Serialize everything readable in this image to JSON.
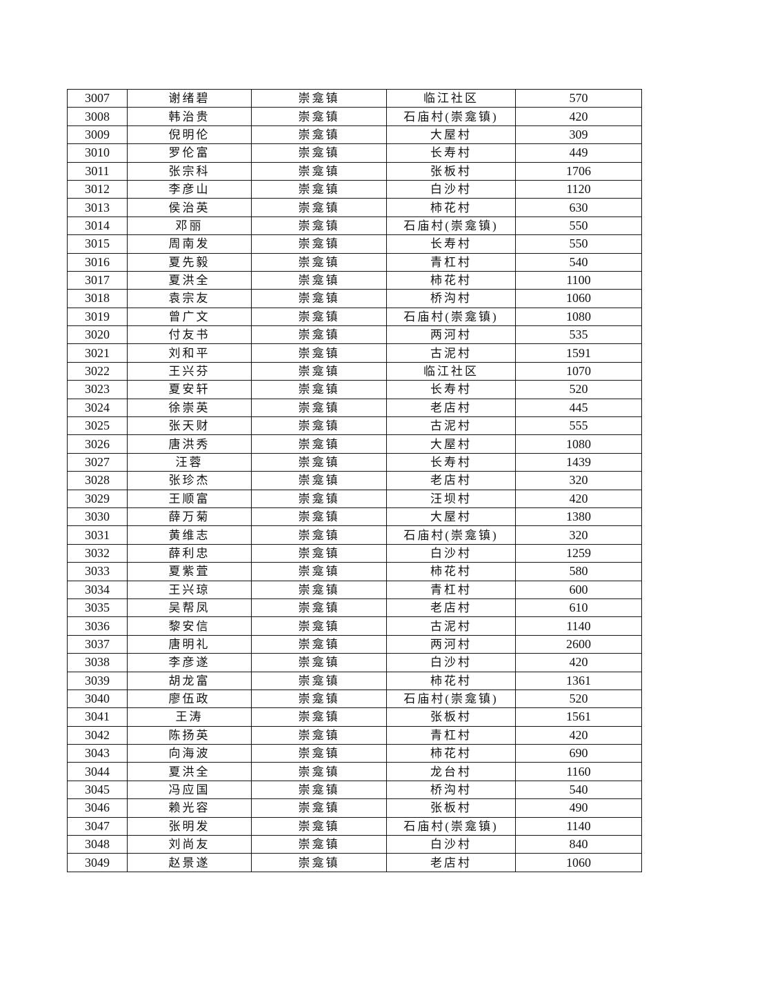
{
  "table": {
    "rows": [
      [
        "3007",
        "谢绪碧",
        "崇龛镇",
        "临江社区",
        "570"
      ],
      [
        "3008",
        "韩治贵",
        "崇龛镇",
        "石庙村(崇龛镇)",
        "420"
      ],
      [
        "3009",
        "倪明伦",
        "崇龛镇",
        "大屋村",
        "309"
      ],
      [
        "3010",
        "罗伦富",
        "崇龛镇",
        "长寿村",
        "449"
      ],
      [
        "3011",
        "张宗科",
        "崇龛镇",
        "张板村",
        "1706"
      ],
      [
        "3012",
        "李彦山",
        "崇龛镇",
        "白沙村",
        "1120"
      ],
      [
        "3013",
        "侯治英",
        "崇龛镇",
        "柿花村",
        "630"
      ],
      [
        "3014",
        "邓丽",
        "崇龛镇",
        "石庙村(崇龛镇)",
        "550"
      ],
      [
        "3015",
        "周南发",
        "崇龛镇",
        "长寿村",
        "550"
      ],
      [
        "3016",
        "夏先毅",
        "崇龛镇",
        "青杠村",
        "540"
      ],
      [
        "3017",
        "夏洪全",
        "崇龛镇",
        "柿花村",
        "1100"
      ],
      [
        "3018",
        "袁宗友",
        "崇龛镇",
        "桥沟村",
        "1060"
      ],
      [
        "3019",
        "曾广文",
        "崇龛镇",
        "石庙村(崇龛镇)",
        "1080"
      ],
      [
        "3020",
        "付友书",
        "崇龛镇",
        "两河村",
        "535"
      ],
      [
        "3021",
        "刘和平",
        "崇龛镇",
        "古泥村",
        "1591"
      ],
      [
        "3022",
        "王兴芬",
        "崇龛镇",
        "临江社区",
        "1070"
      ],
      [
        "3023",
        "夏安轩",
        "崇龛镇",
        "长寿村",
        "520"
      ],
      [
        "3024",
        "徐崇英",
        "崇龛镇",
        "老店村",
        "445"
      ],
      [
        "3025",
        "张天财",
        "崇龛镇",
        "古泥村",
        "555"
      ],
      [
        "3026",
        "唐洪秀",
        "崇龛镇",
        "大屋村",
        "1080"
      ],
      [
        "3027",
        "汪蓉",
        "崇龛镇",
        "长寿村",
        "1439"
      ],
      [
        "3028",
        "张珍杰",
        "崇龛镇",
        "老店村",
        "320"
      ],
      [
        "3029",
        "王顺富",
        "崇龛镇",
        "汪坝村",
        "420"
      ],
      [
        "3030",
        "薛万菊",
        "崇龛镇",
        "大屋村",
        "1380"
      ],
      [
        "3031",
        "黄维志",
        "崇龛镇",
        "石庙村(崇龛镇)",
        "320"
      ],
      [
        "3032",
        "薛利忠",
        "崇龛镇",
        "白沙村",
        "1259"
      ],
      [
        "3033",
        "夏紫萓",
        "崇龛镇",
        "柿花村",
        "580"
      ],
      [
        "3034",
        "王兴琼",
        "崇龛镇",
        "青杠村",
        "600"
      ],
      [
        "3035",
        "吴帮凤",
        "崇龛镇",
        "老店村",
        "610"
      ],
      [
        "3036",
        "黎安信",
        "崇龛镇",
        "古泥村",
        "1140"
      ],
      [
        "3037",
        "唐明礼",
        "崇龛镇",
        "两河村",
        "2600"
      ],
      [
        "3038",
        "李彦遂",
        "崇龛镇",
        "白沙村",
        "420"
      ],
      [
        "3039",
        "胡龙富",
        "崇龛镇",
        "柿花村",
        "1361"
      ],
      [
        "3040",
        "廖伍政",
        "崇龛镇",
        "石庙村(崇龛镇)",
        "520"
      ],
      [
        "3041",
        "王涛",
        "崇龛镇",
        "张板村",
        "1561"
      ],
      [
        "3042",
        "陈扬英",
        "崇龛镇",
        "青杠村",
        "420"
      ],
      [
        "3043",
        "向海波",
        "崇龛镇",
        "柿花村",
        "690"
      ],
      [
        "3044",
        "夏洪全",
        "崇龛镇",
        "龙台村",
        "1160"
      ],
      [
        "3045",
        "冯应国",
        "崇龛镇",
        "桥沟村",
        "540"
      ],
      [
        "3046",
        "赖光容",
        "崇龛镇",
        "张板村",
        "490"
      ],
      [
        "3047",
        "张明发",
        "崇龛镇",
        "石庙村(崇龛镇)",
        "1140"
      ],
      [
        "3048",
        "刘尚友",
        "崇龛镇",
        "白沙村",
        "840"
      ],
      [
        "3049",
        "赵景遂",
        "崇龛镇",
        "老店村",
        "1060"
      ]
    ]
  }
}
